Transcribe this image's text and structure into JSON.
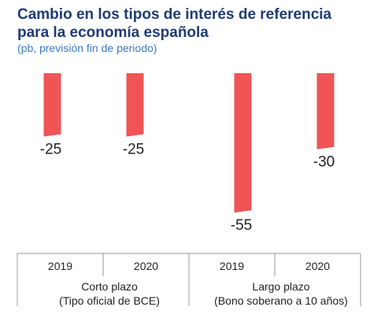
{
  "header": {
    "title": "Cambio en los tipos de interés de referencia para la economía española",
    "subtitle": "(pb, previsión fin de periodo)"
  },
  "chart_data": {
    "type": "bar",
    "title": "Cambio en los tipos de interés de referencia para la economía española",
    "subtitle": "(pb, previsión fin de periodo)",
    "categories": [
      "2019",
      "2020",
      "2019",
      "2020"
    ],
    "groups": [
      {
        "label_lines": [
          "Corto plazo",
          "(Tipo oficial de BCE)"
        ],
        "categories": [
          "2019",
          "2020"
        ]
      },
      {
        "label_lines": [
          "Largo plazo",
          "(Bono soberano  a 10 años)"
        ],
        "categories": [
          "2019",
          "2020"
        ]
      }
    ],
    "values": [
      -25,
      -25,
      -55,
      -30
    ],
    "data_labels": [
      "-25",
      "-25",
      "-55",
      "-30"
    ],
    "ylim": [
      -60,
      0
    ],
    "grid": false,
    "legend": "none",
    "bar_color": "#f05456"
  }
}
